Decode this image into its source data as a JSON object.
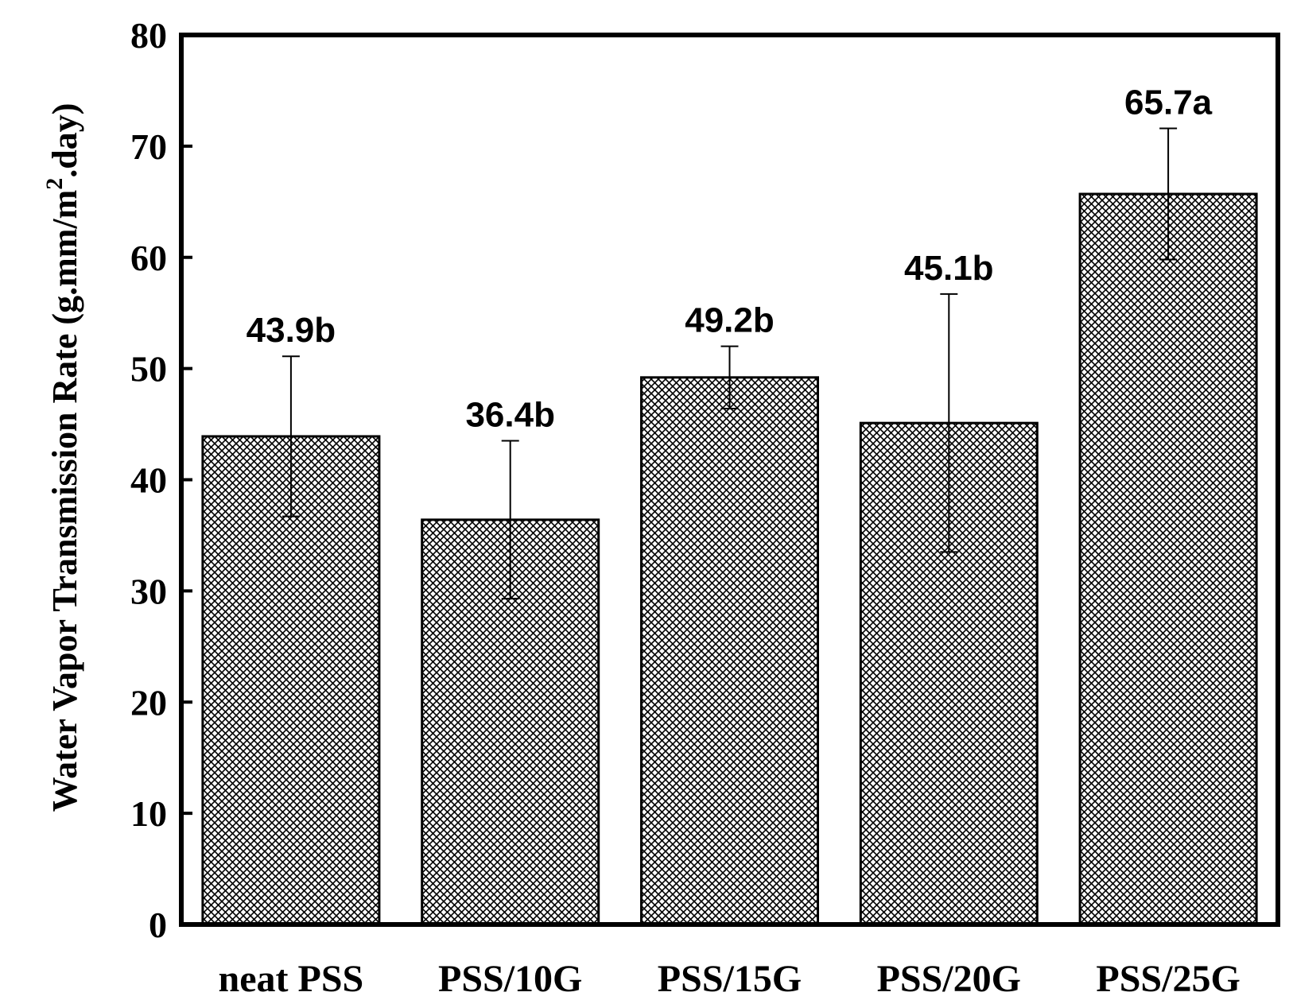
{
  "chart_data": {
    "type": "bar",
    "title": "",
    "xlabel": "",
    "ylabel": {
      "prefix": "Water Vapor Transmission Rate (g.mm/m",
      "superscript": "2",
      "suffix": ".day)"
    },
    "ylim": [
      0,
      80
    ],
    "yticks": [
      "0",
      "10",
      "20",
      "30",
      "40",
      "50",
      "60",
      "70",
      "80"
    ],
    "categories": [
      "neat PSS",
      "PSS/10G",
      "PSS/15G",
      "PSS/20G",
      "PSS/25G"
    ],
    "values": [
      43.9,
      36.4,
      49.2,
      45.1,
      65.7
    ],
    "errors": [
      7.2,
      7.1,
      2.8,
      11.6,
      5.9
    ],
    "data_labels": [
      "43.9b",
      "36.4b",
      "49.2b",
      "45.1b",
      "65.7a"
    ],
    "fill": "crosshatch",
    "grid": false,
    "colors": {
      "bar_fill": "#ffffff",
      "hatch": "#000000",
      "axis": "#000000"
    }
  }
}
